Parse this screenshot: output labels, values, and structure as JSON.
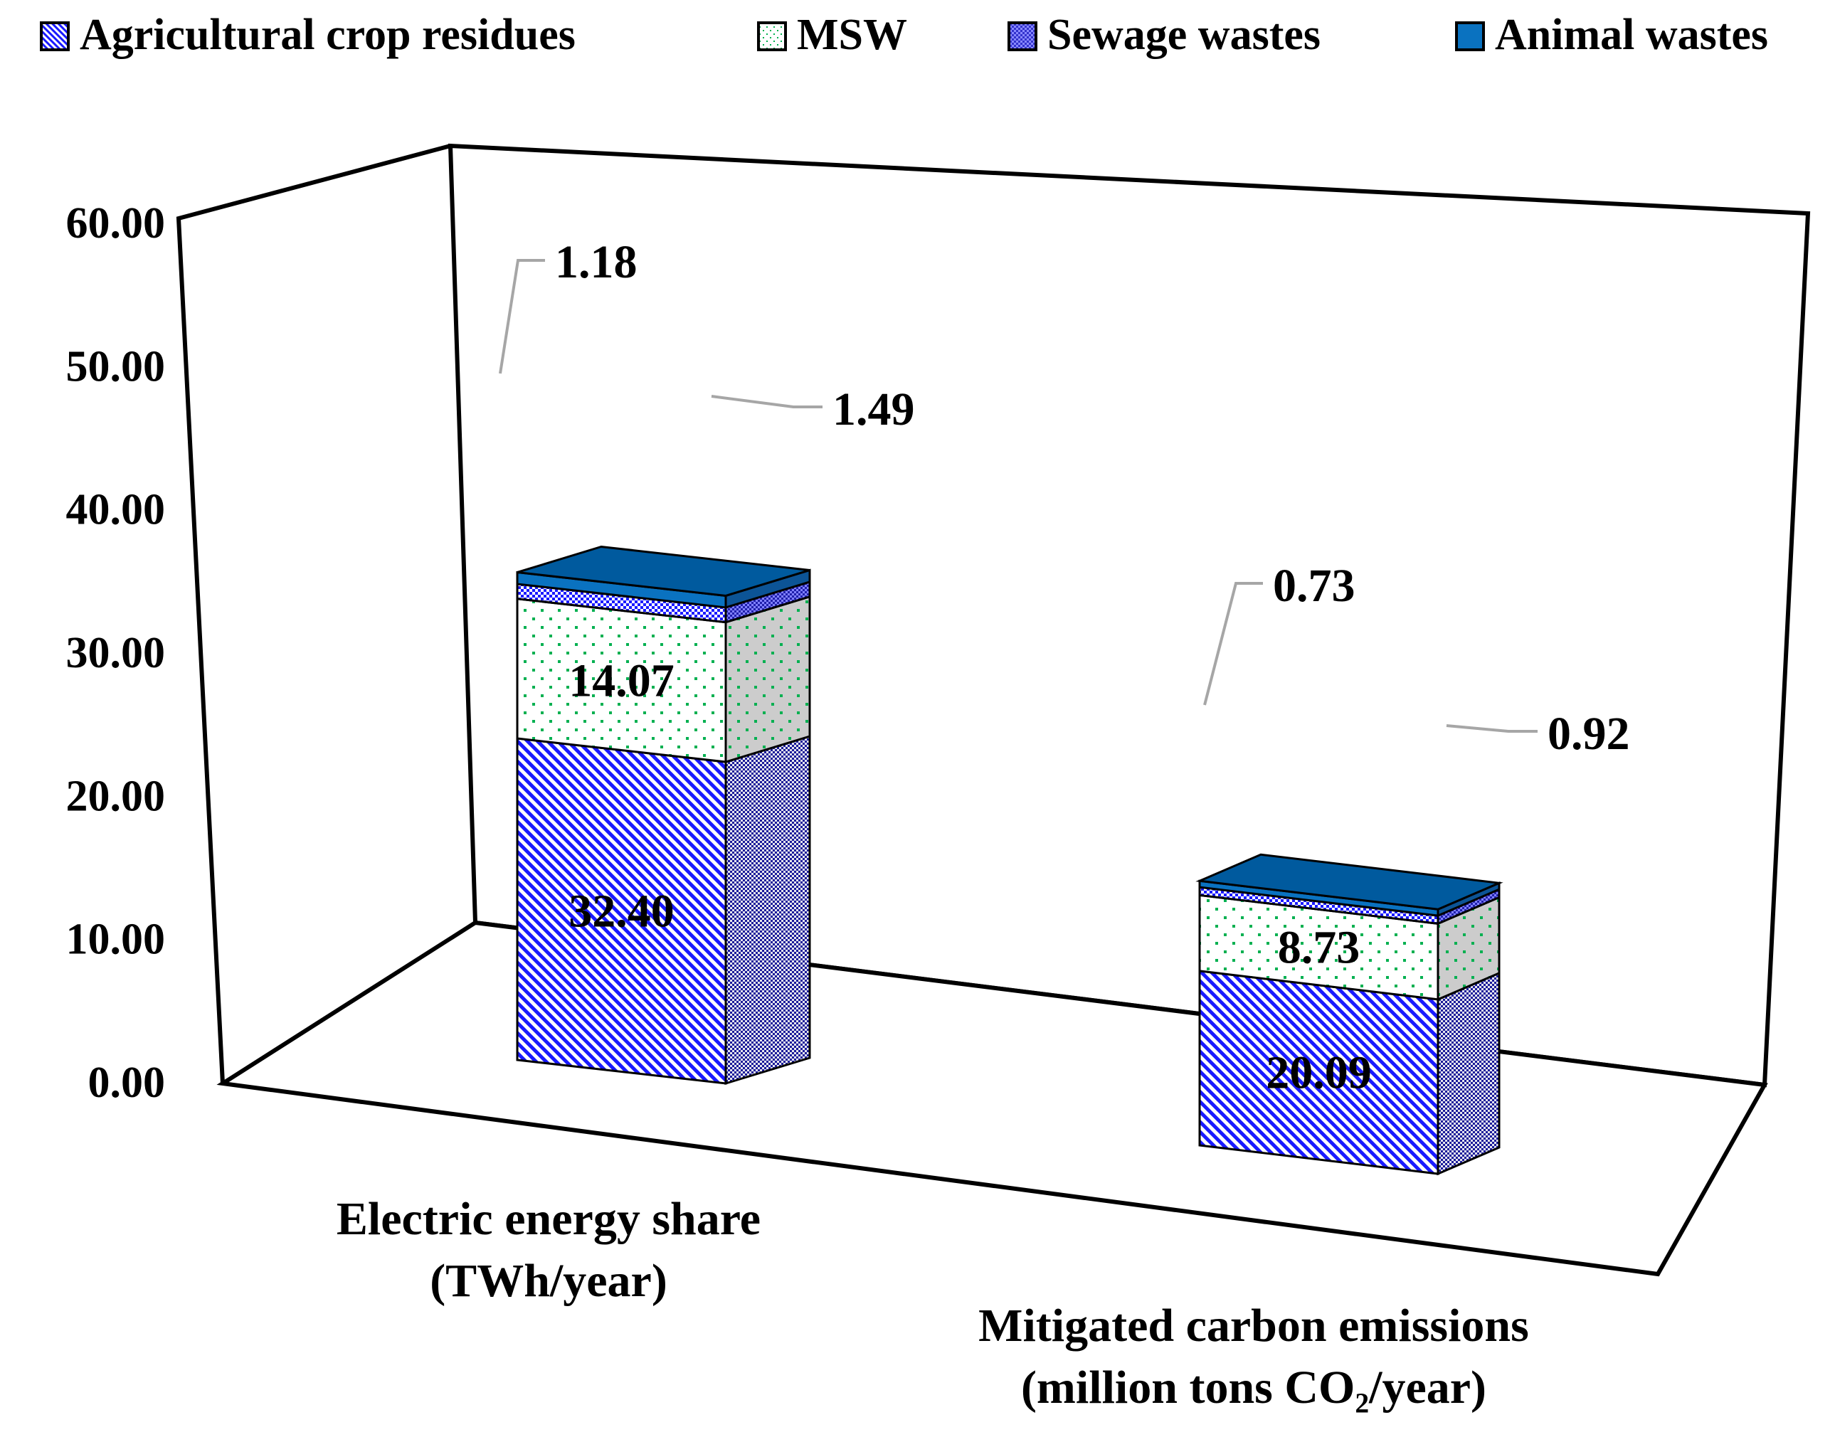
{
  "chart_data": {
    "type": "bar",
    "stacked": true,
    "style": "3d",
    "categories": [
      [
        "Electric energy share",
        "(TWh/year)"
      ],
      [
        "Mitigated carbon emissions",
        "(million tons CO₂/year)"
      ]
    ],
    "series": [
      {
        "name": "Agricultural crop residues",
        "values": [
          32.4,
          20.09
        ],
        "labels": [
          "32.40",
          "20.09"
        ],
        "pattern": "diagonal-stripes"
      },
      {
        "name": "MSW",
        "values": [
          14.07,
          8.73
        ],
        "labels": [
          "14.07",
          "8.73"
        ],
        "pattern": "green-dots"
      },
      {
        "name": "Sewage wastes",
        "values": [
          1.49,
          0.92
        ],
        "labels": [
          "1.49",
          "0.92"
        ],
        "pattern": "checker"
      },
      {
        "name": "Animal wastes",
        "values": [
          1.18,
          0.73
        ],
        "labels": [
          "1.18",
          "0.73"
        ],
        "pattern": "solid"
      }
    ],
    "yticks": [
      "0.00",
      "10.00",
      "20.00",
      "30.00",
      "40.00",
      "50.00",
      "60.00"
    ],
    "ylim": [
      0,
      60
    ],
    "legend_position": "top",
    "colors": {
      "blue": "#1a1aff",
      "blue_dark": "#1a1a99",
      "green": "#00b050",
      "animal_front": "#0a72c0",
      "animal_top": "#005a9e",
      "animal_side": "#0c5496",
      "side_gray": "#cccccc",
      "leader": "#a6a6a6"
    }
  }
}
